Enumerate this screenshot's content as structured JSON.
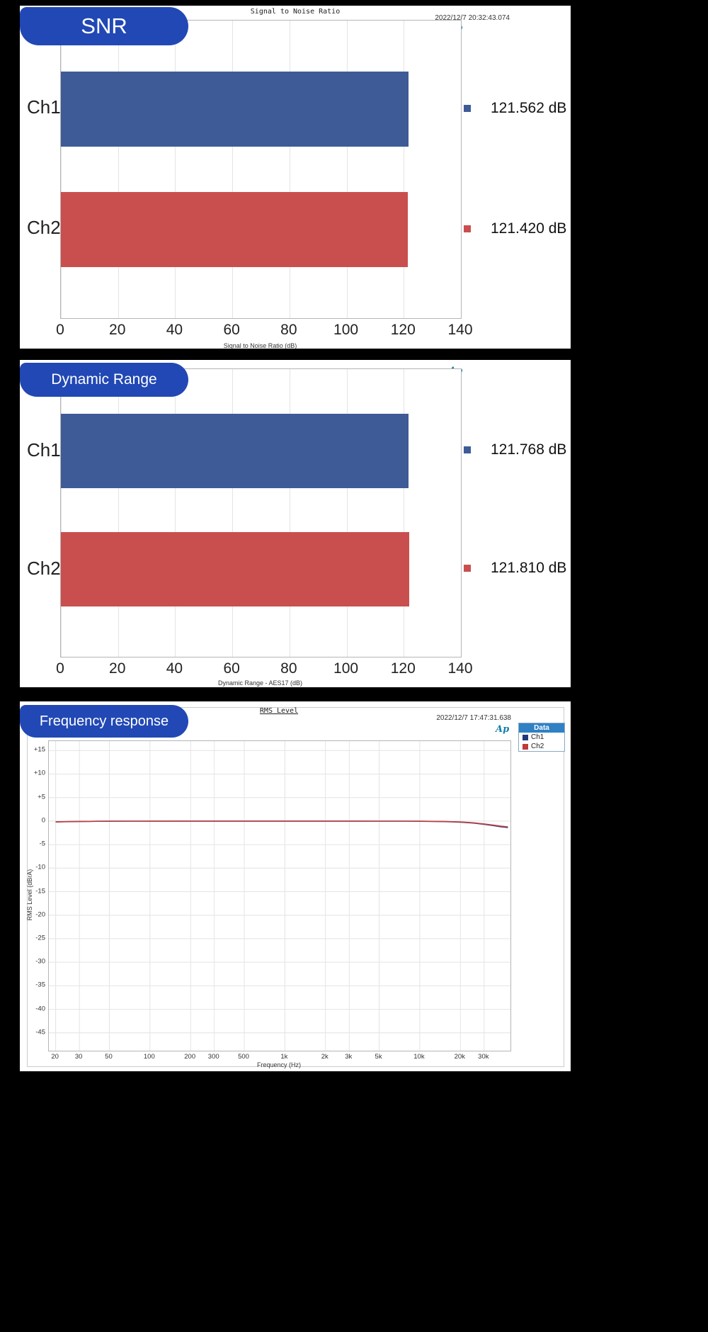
{
  "page": {
    "background": "#000000"
  },
  "icons": {
    "ap_logo": "Ap"
  },
  "chart_data": [
    {
      "type": "bar",
      "orientation": "horizontal",
      "badge": "SNR",
      "title": "Signal to Noise Ratio",
      "timestamp": "2022/12/7 20:32:43.074",
      "categories": [
        "Ch1",
        "Ch2"
      ],
      "values": [
        121.562,
        121.42
      ],
      "value_labels": [
        "121.562 dB",
        "121.420 dB"
      ],
      "colors": [
        "#3e5b97",
        "#c94f4e"
      ],
      "xlabel": "Signal to Noise Ratio (dB)",
      "xlim": [
        0,
        140
      ],
      "xticks": [
        0,
        20,
        40,
        60,
        80,
        100,
        120,
        140
      ],
      "grid": true
    },
    {
      "type": "bar",
      "orientation": "horizontal",
      "badge": "Dynamic Range",
      "categories": [
        "Ch1",
        "Ch2"
      ],
      "values": [
        121.768,
        121.81
      ],
      "value_labels": [
        "121.768 dB",
        "121.810 dB"
      ],
      "colors": [
        "#3e5b97",
        "#c94f4e"
      ],
      "xlabel": "Dynamic Range - AES17 (dB)",
      "xlim": [
        0,
        140
      ],
      "xticks": [
        0,
        20,
        40,
        60,
        80,
        100,
        120,
        140
      ],
      "grid": true
    },
    {
      "type": "line",
      "badge": "Frequency response",
      "title": "RMS Level",
      "timestamp": "2022/12/7 17:47:31.638",
      "xlabel": "Frequency (Hz)",
      "ylabel": "RMS Level (dBrA)",
      "x_scale": "log",
      "xlim": [
        17.8,
        47000
      ],
      "ylim": [
        -48.8,
        17
      ],
      "grid": true,
      "legend_position": "top-right",
      "xticks": [
        {
          "v": 20,
          "label": "20"
        },
        {
          "v": 30,
          "label": "30"
        },
        {
          "v": 50,
          "label": "50"
        },
        {
          "v": 100,
          "label": "100"
        },
        {
          "v": 200,
          "label": "200"
        },
        {
          "v": 300,
          "label": "300"
        },
        {
          "v": 500,
          "label": "500"
        },
        {
          "v": 1000,
          "label": "1k"
        },
        {
          "v": 2000,
          "label": "2k"
        },
        {
          "v": 3000,
          "label": "3k"
        },
        {
          "v": 5000,
          "label": "5k"
        },
        {
          "v": 10000,
          "label": "10k"
        },
        {
          "v": 20000,
          "label": "20k"
        },
        {
          "v": 30000,
          "label": "30k"
        }
      ],
      "yticks": [
        {
          "v": 15,
          "label": "+15"
        },
        {
          "v": 10,
          "label": "+10"
        },
        {
          "v": 5,
          "label": "+5"
        },
        {
          "v": 0,
          "label": "0"
        },
        {
          "v": -5,
          "label": "-5"
        },
        {
          "v": -10,
          "label": "-10"
        },
        {
          "v": -15,
          "label": "-15"
        },
        {
          "v": -20,
          "label": "-20"
        },
        {
          "v": -25,
          "label": "-25"
        },
        {
          "v": -30,
          "label": "-30"
        },
        {
          "v": -35,
          "label": "-35"
        },
        {
          "v": -40,
          "label": "-40"
        },
        {
          "v": -45,
          "label": "-45"
        }
      ],
      "legend": {
        "title": "Data",
        "entries": [
          {
            "label": "Ch1",
            "color": "#1f3a7a"
          },
          {
            "label": "Ch2",
            "color": "#c03a3a"
          }
        ]
      },
      "series": [
        {
          "name": "Ch1",
          "color": "#2b3f87",
          "points": [
            [
              20,
              -0.18
            ],
            [
              25,
              -0.12
            ],
            [
              30,
              -0.08
            ],
            [
              40,
              -0.05
            ],
            [
              50,
              -0.03
            ],
            [
              70,
              -0.02
            ],
            [
              100,
              -0.01
            ],
            [
              200,
              0
            ],
            [
              500,
              0
            ],
            [
              1000,
              0
            ],
            [
              2000,
              0
            ],
            [
              3000,
              0
            ],
            [
              5000,
              -0.01
            ],
            [
              8000,
              -0.02
            ],
            [
              10000,
              -0.04
            ],
            [
              15000,
              -0.1
            ],
            [
              20000,
              -0.22
            ],
            [
              25000,
              -0.42
            ],
            [
              30000,
              -0.68
            ],
            [
              35000,
              -0.95
            ],
            [
              40000,
              -1.2
            ],
            [
              45000,
              -1.35
            ]
          ]
        },
        {
          "name": "Ch2",
          "color": "#bf4040",
          "points": [
            [
              20,
              -0.15
            ],
            [
              25,
              -0.1
            ],
            [
              30,
              -0.07
            ],
            [
              40,
              -0.04
            ],
            [
              50,
              -0.02
            ],
            [
              70,
              -0.01
            ],
            [
              100,
              0
            ],
            [
              200,
              0
            ],
            [
              500,
              0
            ],
            [
              1000,
              0
            ],
            [
              2000,
              0
            ],
            [
              3000,
              0
            ],
            [
              5000,
              -0.01
            ],
            [
              8000,
              -0.02
            ],
            [
              10000,
              -0.03
            ],
            [
              15000,
              -0.08
            ],
            [
              20000,
              -0.18
            ],
            [
              25000,
              -0.36
            ],
            [
              30000,
              -0.6
            ],
            [
              35000,
              -0.85
            ],
            [
              40000,
              -1.08
            ],
            [
              45000,
              -1.22
            ]
          ]
        }
      ]
    }
  ]
}
